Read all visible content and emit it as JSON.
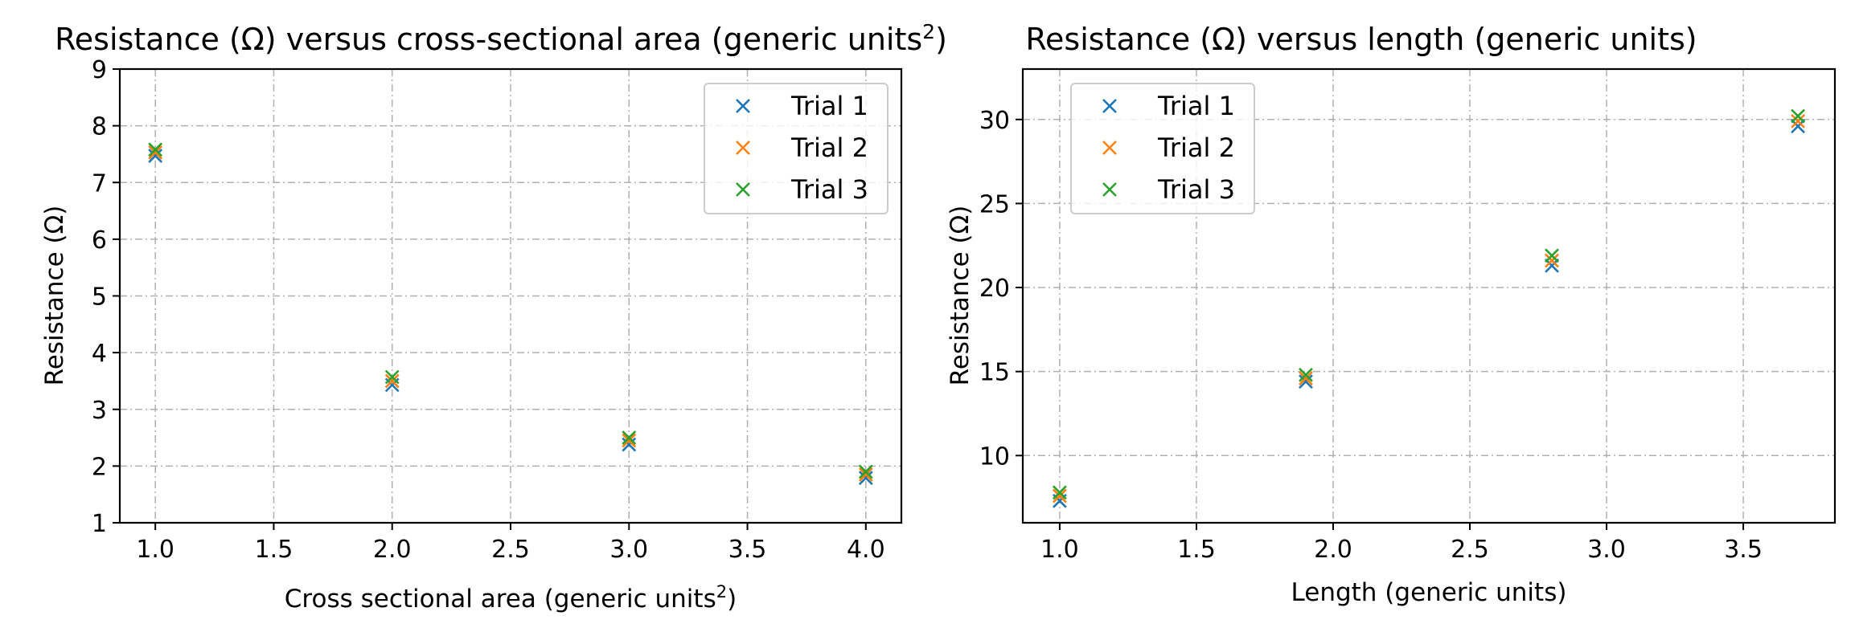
{
  "chart_data": [
    {
      "type": "scatter",
      "title_main": "Resistance (Ω) versus cross-sectional area (generic units",
      "title_sup": "2",
      "title_end": ")",
      "xlabel_main": "Cross sectional area (generic units",
      "xlabel_sup": "2",
      "xlabel_end": ")",
      "ylabel": "Resistance (Ω)",
      "xlim": [
        0.85,
        4.15
      ],
      "ylim": [
        1,
        9
      ],
      "xticks": [
        1.0,
        1.5,
        2.0,
        2.5,
        3.0,
        3.5,
        4.0
      ],
      "xtick_labels": [
        "1.0",
        "1.5",
        "2.0",
        "2.5",
        "3.0",
        "3.5",
        "4.0"
      ],
      "yticks": [
        1,
        2,
        3,
        4,
        5,
        6,
        7,
        8,
        9
      ],
      "ytick_labels": [
        "1",
        "2",
        "3",
        "4",
        "5",
        "6",
        "7",
        "8",
        "9"
      ],
      "grid": true,
      "legend_position": "upper-right",
      "x": [
        1.0,
        2.0,
        3.0,
        4.0
      ],
      "series": [
        {
          "name": "Trial 1",
          "color": "#1f77b4",
          "values": [
            7.47,
            3.43,
            2.38,
            1.79
          ]
        },
        {
          "name": "Trial 2",
          "color": "#ff7f0e",
          "values": [
            7.53,
            3.5,
            2.45,
            1.85
          ]
        },
        {
          "name": "Trial 3",
          "color": "#2ca02c",
          "values": [
            7.58,
            3.57,
            2.5,
            1.9
          ]
        }
      ]
    },
    {
      "type": "scatter",
      "title_main": "Resistance (Ω) versus length (generic units)",
      "title_sup": "",
      "title_end": "",
      "xlabel_main": "Length (generic units)",
      "xlabel_sup": "",
      "xlabel_end": "",
      "ylabel": "Resistance (Ω)",
      "xlim": [
        0.865,
        3.835
      ],
      "ylim": [
        6.0,
        33.0
      ],
      "xticks": [
        1.0,
        1.5,
        2.0,
        2.5,
        3.0,
        3.5
      ],
      "xtick_labels": [
        "1.0",
        "1.5",
        "2.0",
        "2.5",
        "3.0",
        "3.5"
      ],
      "yticks": [
        10,
        15,
        20,
        25,
        30
      ],
      "ytick_labels": [
        "10",
        "15",
        "20",
        "25",
        "30"
      ],
      "grid": true,
      "legend_position": "upper-left",
      "x": [
        1.0,
        1.9,
        2.8,
        3.7
      ],
      "series": [
        {
          "name": "Trial 1",
          "color": "#1f77b4",
          "values": [
            7.3,
            14.4,
            21.3,
            29.6
          ]
        },
        {
          "name": "Trial 2",
          "color": "#ff7f0e",
          "values": [
            7.6,
            14.6,
            21.6,
            29.9
          ]
        },
        {
          "name": "Trial 3",
          "color": "#2ca02c",
          "values": [
            7.8,
            14.8,
            21.9,
            30.2
          ]
        }
      ]
    }
  ]
}
